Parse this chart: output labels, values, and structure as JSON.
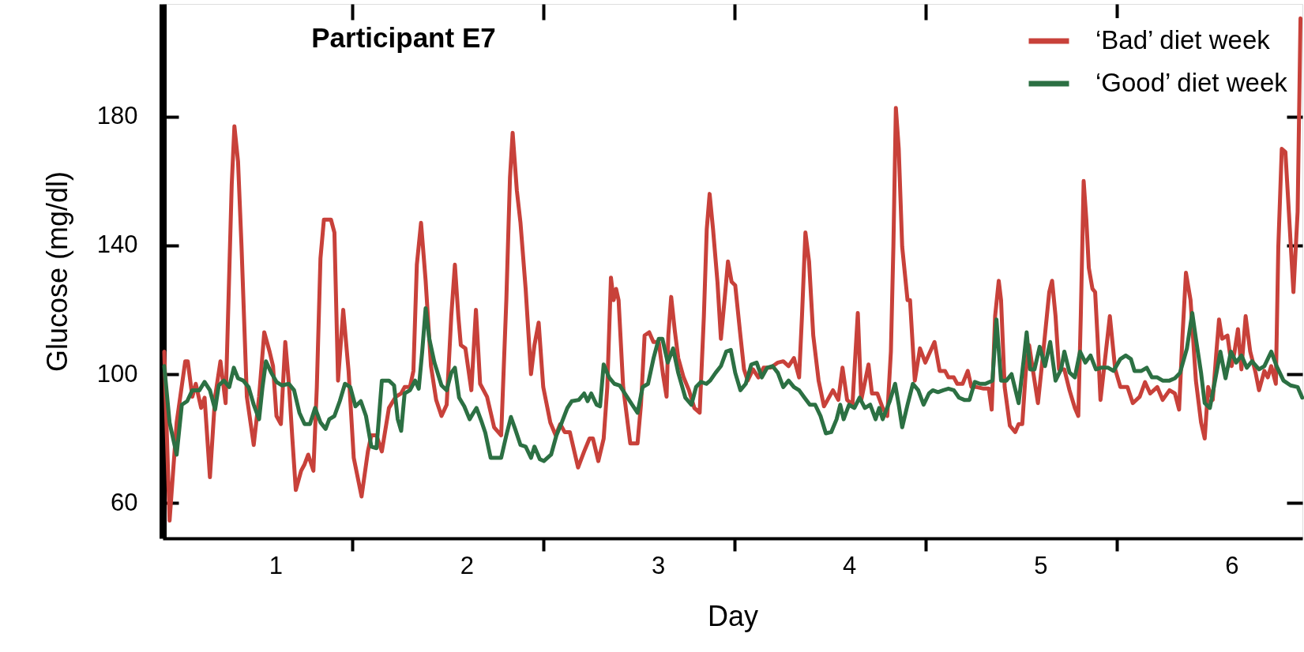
{
  "chart_data": {
    "type": "line",
    "title": "Participant E7",
    "xlabel": "Day",
    "ylabel": "Glucose (mg/dl)",
    "xlim": [
      0.41,
      6.37
    ],
    "ylim": [
      49,
      215
    ],
    "xticks": [
      1,
      2,
      3,
      4,
      5,
      6,
      {
        "value": 1.4,
        "label": null
      },
      {
        "value": 2.4,
        "label": null
      },
      {
        "value": 3.4,
        "label": null
      },
      {
        "value": 4.4,
        "label": null
      },
      {
        "value": 5.4,
        "label": null
      }
    ],
    "yticks": [
      60,
      100,
      140,
      180
    ],
    "legend": "top right",
    "line_style": "solid",
    "series": [
      {
        "name": "‘Bad’ diet week",
        "color": "#c8413a",
        "x": [
          0.418,
          0.446,
          0.483,
          0.528,
          0.541,
          0.565,
          0.583,
          0.611,
          0.629,
          0.657,
          0.684,
          0.712,
          0.739,
          0.771,
          0.785,
          0.804,
          0.822,
          0.85,
          0.886,
          0.914,
          0.941,
          0.969,
          0.987,
          1.005,
          1.028,
          1.051,
          1.07,
          1.088,
          1.106,
          1.134,
          1.152,
          1.171,
          1.198,
          1.216,
          1.235,
          1.253,
          1.29,
          1.308,
          1.327,
          1.354,
          1.382,
          1.409,
          1.45,
          1.483,
          1.501,
          1.528,
          1.556,
          1.593,
          1.629,
          1.657,
          1.675,
          1.703,
          1.721,
          1.739,
          1.761,
          1.785,
          1.813,
          1.84,
          1.868,
          1.895,
          1.919,
          1.938,
          1.956,
          1.969,
          1.993,
          2.024,
          2.048,
          2.07,
          2.106,
          2.143,
          2.18,
          2.207,
          2.226,
          2.24,
          2.262,
          2.281,
          2.308,
          2.336,
          2.354,
          2.376,
          2.4,
          2.437,
          2.465,
          2.489,
          2.512,
          2.539,
          2.582,
          2.614,
          2.642,
          2.66,
          2.688,
          2.716,
          2.735,
          2.754,
          2.768,
          2.781,
          2.794,
          2.818,
          2.855,
          2.893,
          2.911,
          2.93,
          2.954,
          2.976,
          3.004,
          3.026,
          3.045,
          3.054,
          3.069,
          3.088,
          3.106,
          3.134,
          3.162,
          3.19,
          3.218,
          3.24,
          3.255,
          3.27,
          3.288,
          3.311,
          3.329,
          3.348,
          3.366,
          3.385,
          3.404,
          3.431,
          3.45,
          3.469,
          3.497,
          3.525,
          3.552,
          3.59,
          3.627,
          3.655,
          3.683,
          3.711,
          3.738,
          3.753,
          3.771,
          3.79,
          3.812,
          3.84,
          3.868,
          3.887,
          3.915,
          3.943,
          3.965,
          3.989,
          4.017,
          4.045,
          4.063,
          4.101,
          4.119,
          4.147,
          4.175,
          4.199,
          4.218,
          4.231,
          4.244,
          4.259,
          4.277,
          4.305,
          4.318,
          4.343,
          4.37,
          4.398,
          4.446,
          4.473,
          4.501,
          4.519,
          4.547,
          4.565,
          4.593,
          4.62,
          4.639,
          4.666,
          4.703,
          4.73,
          4.745,
          4.763,
          4.782,
          4.794,
          4.813,
          4.84,
          4.868,
          4.886,
          4.905,
          4.923,
          4.941,
          4.96,
          4.987,
          5.015,
          5.046,
          5.061,
          5.079,
          5.097,
          5.125,
          5.152,
          5.18,
          5.198,
          5.211,
          5.226,
          5.24,
          5.253,
          5.272,
          5.286,
          5.299,
          5.314,
          5.332,
          5.363,
          5.391,
          5.418,
          5.455,
          5.483,
          5.519,
          5.547,
          5.574,
          5.611,
          5.639,
          5.675,
          5.703,
          5.725,
          5.743,
          5.761,
          5.785,
          5.813,
          5.84,
          5.859,
          5.877,
          5.901,
          5.919,
          5.934,
          5.95,
          5.978,
          6.0,
          6.015,
          6.033,
          6.051,
          6.073,
          6.097,
          6.125,
          6.143,
          6.171,
          6.189,
          6.207,
          6.231,
          6.244,
          6.262,
          6.281,
          6.299,
          6.323,
          6.345,
          6.36
        ],
        "values": [
          107,
          54.5,
          85,
          104,
          104,
          93,
          97,
          89.5,
          92.7,
          68,
          93,
          104,
          91,
          159,
          177,
          166,
          140,
          93,
          78,
          93,
          113,
          107,
          102.5,
          87,
          84.5,
          110,
          97,
          80,
          64,
          70,
          72,
          75,
          70,
          96,
          136,
          148,
          148,
          144,
          98,
          120,
          101,
          74,
          62,
          76,
          81,
          81,
          76,
          89.5,
          93,
          94,
          96,
          96,
          101,
          134,
          147,
          129,
          102.5,
          92,
          87,
          90.5,
          118,
          134,
          118,
          109,
          108,
          95,
          120,
          97,
          93,
          83.5,
          81,
          123,
          161,
          175,
          157,
          147,
          126.5,
          100,
          109,
          116,
          96,
          85,
          81,
          84.5,
          82,
          82,
          71,
          76,
          80,
          80,
          73,
          80,
          96,
          130,
          123,
          126.5,
          123,
          96,
          78.5,
          78.5,
          90.5,
          112,
          113,
          110,
          110,
          100,
          93,
          112,
          124,
          113.5,
          105,
          99,
          95,
          89.5,
          88,
          118,
          145,
          156,
          145,
          128.7,
          111,
          123,
          135,
          128.7,
          127.6,
          112,
          101.5,
          98,
          101.5,
          99,
          102,
          102,
          103.6,
          104,
          102.5,
          105,
          99,
          118,
          144,
          135,
          112,
          98,
          90,
          92,
          95,
          92,
          102,
          92,
          90.5,
          119,
          92,
          103,
          94,
          94,
          89.5,
          87,
          107,
          139.6,
          182.7,
          170,
          139.6,
          123,
          123,
          98,
          108,
          103.6,
          110,
          101,
          101,
          99,
          99,
          97,
          97,
          101,
          96,
          96,
          95.5,
          95.5,
          89,
          118,
          129,
          123,
          96,
          84,
          82,
          84.5,
          84.5,
          100.5,
          109,
          101.5,
          91,
          107,
          125.5,
          129,
          118,
          101.5,
          101.5,
          95,
          89.5,
          87,
          118,
          160,
          148,
          133,
          126.5,
          125.5,
          111,
          92,
          101.5,
          118,
          101.5,
          96,
          96,
          91,
          93,
          97.5,
          94,
          96,
          92,
          95,
          94,
          89,
          112,
          131.5,
          123,
          98,
          85,
          80,
          96,
          92,
          106,
          117,
          111,
          112,
          102.5,
          107,
          114,
          101.5,
          118,
          107,
          100.5,
          95,
          101,
          99,
          102.5,
          97,
          139.6,
          170,
          169,
          150.5,
          125.5,
          150.5,
          210.5
        ]
      },
      {
        "name": "‘Good’ diet week",
        "color": "#2c7043",
        "x": [
          0.418,
          0.446,
          0.483,
          0.51,
          0.538,
          0.565,
          0.602,
          0.629,
          0.657,
          0.684,
          0.703,
          0.73,
          0.758,
          0.782,
          0.804,
          0.831,
          0.859,
          0.886,
          0.914,
          0.932,
          0.95,
          0.978,
          1.005,
          1.033,
          1.07,
          1.097,
          1.125,
          1.152,
          1.18,
          1.207,
          1.235,
          1.262,
          1.281,
          1.308,
          1.336,
          1.363,
          1.391,
          1.418,
          1.446,
          1.473,
          1.501,
          1.528,
          1.556,
          1.593,
          1.62,
          1.639,
          1.657,
          1.675,
          1.703,
          1.73,
          1.749,
          1.767,
          1.785,
          1.804,
          1.831,
          1.868,
          1.895,
          1.919,
          1.938,
          1.96,
          1.987,
          2.015,
          2.033,
          2.051,
          2.079,
          2.097,
          2.125,
          2.152,
          2.18,
          2.207,
          2.231,
          2.253,
          2.281,
          2.308,
          2.336,
          2.354,
          2.382,
          2.403,
          2.441,
          2.469,
          2.497,
          2.526,
          2.549,
          2.586,
          2.614,
          2.632,
          2.651,
          2.679,
          2.697,
          2.716,
          2.744,
          2.772,
          2.8,
          2.827,
          2.865,
          2.893,
          2.92,
          2.948,
          2.977,
          3.004,
          3.023,
          3.051,
          3.079,
          3.106,
          3.143,
          3.175,
          3.199,
          3.225,
          3.253,
          3.273,
          3.301,
          3.329,
          3.357,
          3.381,
          3.404,
          3.431,
          3.459,
          3.488,
          3.516,
          3.543,
          3.571,
          3.599,
          3.627,
          3.655,
          3.683,
          3.711,
          3.738,
          3.766,
          3.794,
          3.822,
          3.85,
          3.878,
          3.906,
          3.934,
          3.953,
          3.971,
          3.999,
          4.027,
          4.054,
          4.082,
          4.11,
          4.138,
          4.157,
          4.175,
          4.212,
          4.24,
          4.259,
          4.277,
          4.305,
          4.333,
          4.361,
          4.389,
          4.417,
          4.437,
          4.464,
          4.492,
          4.519,
          4.547,
          4.574,
          4.602,
          4.629,
          4.657,
          4.684,
          4.712,
          4.749,
          4.77,
          4.794,
          4.822,
          4.849,
          4.886,
          4.913,
          4.928,
          4.946,
          4.969,
          4.996,
          5.024,
          5.051,
          5.079,
          5.108,
          5.125,
          5.152,
          5.18,
          5.207,
          5.235,
          5.262,
          5.29,
          5.317,
          5.354,
          5.382,
          5.418,
          5.446,
          5.473,
          5.492,
          5.528,
          5.556,
          5.583,
          5.611,
          5.639,
          5.675,
          5.703,
          5.73,
          5.766,
          5.794,
          5.813,
          5.84,
          5.859,
          5.886,
          5.913,
          5.941,
          5.968,
          5.996,
          6.024,
          6.051,
          6.079,
          6.106,
          6.143,
          6.171,
          6.207,
          6.235,
          6.271,
          6.308,
          6.345,
          6.369
        ],
        "values": [
          102.5,
          85,
          75,
          90.5,
          91.6,
          95,
          95,
          97.6,
          95,
          89,
          96.5,
          98,
          96,
          102,
          98.7,
          98,
          96,
          90.5,
          86,
          96,
          104,
          100.4,
          97.6,
          96.5,
          97,
          95,
          88,
          84.5,
          84.5,
          89.5,
          85,
          83,
          86,
          87,
          91.6,
          97,
          96,
          90,
          91.6,
          87,
          77.5,
          77,
          98,
          98,
          96.5,
          86,
          82.4,
          94,
          95,
          98,
          95.5,
          107,
          120.5,
          111,
          103.6,
          96.5,
          95,
          100.4,
          102,
          92.7,
          90,
          86,
          87.8,
          89.5,
          85,
          81.8,
          74,
          74,
          74,
          81,
          86.7,
          83,
          78,
          77.5,
          74,
          77.5,
          73.6,
          73,
          75,
          81,
          85,
          89.5,
          91.6,
          92,
          94,
          91.6,
          94,
          90.5,
          90,
          103,
          99,
          97,
          96.5,
          94,
          90.5,
          88,
          96,
          97,
          105,
          111,
          111,
          103.6,
          108,
          100.4,
          92.7,
          90.5,
          96,
          97.6,
          97,
          98,
          100.4,
          102.5,
          107,
          107.5,
          100.4,
          95,
          97,
          103,
          103.6,
          99,
          102,
          102.5,
          100.4,
          96,
          98,
          96,
          95,
          92.7,
          90.5,
          90.5,
          87,
          81.6,
          82,
          86,
          90.5,
          86,
          90.5,
          89.5,
          92.7,
          89.5,
          90.5,
          86,
          89.5,
          86,
          91.6,
          97,
          90.5,
          83.5,
          90.5,
          97,
          95,
          90.5,
          94,
          95,
          94.4,
          95,
          95.5,
          95,
          92.7,
          92,
          92,
          97.6,
          97,
          97,
          98,
          117,
          98,
          98,
          100,
          91,
          104.7,
          113,
          101.5,
          101.5,
          108.5,
          102.5,
          110,
          98,
          101.5,
          107,
          100.5,
          99,
          107,
          103.6,
          105.8,
          101.5,
          102,
          102,
          101,
          104.7,
          105.8,
          104.7,
          101,
          101,
          102,
          99,
          99,
          98,
          98,
          98.7,
          100.4,
          108,
          119,
          111,
          100.4,
          91,
          89.5,
          98,
          107,
          98.7,
          107,
          103.6,
          105.8,
          102,
          104,
          101.5,
          102.5,
          107,
          102.5,
          98,
          96.5,
          96,
          92.7
        ]
      }
    ]
  }
}
